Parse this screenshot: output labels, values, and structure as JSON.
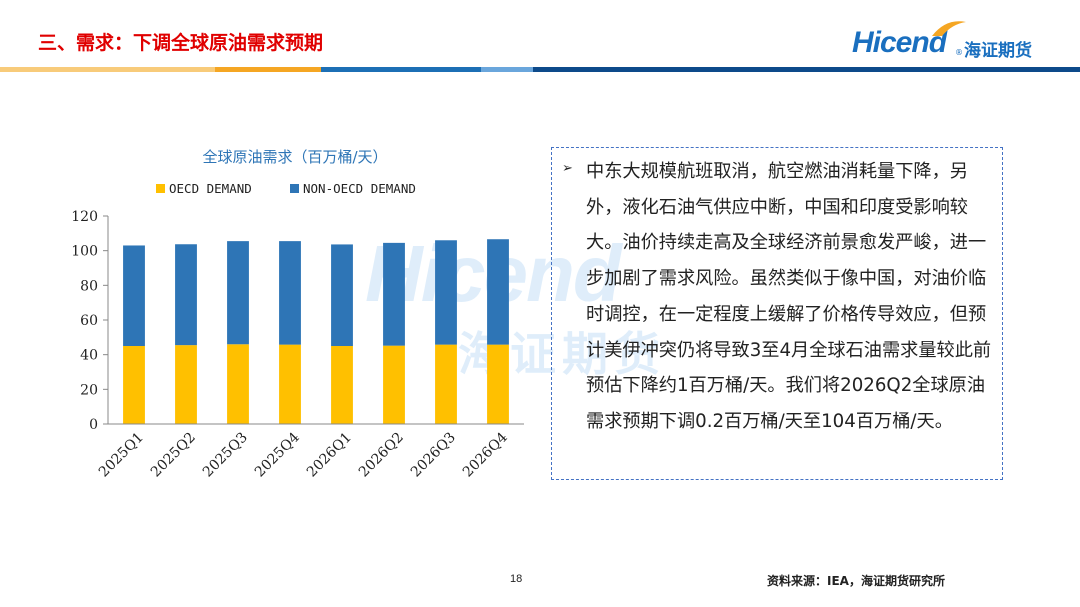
{
  "header": {
    "title": "三、需求：下调全球原油需求预期"
  },
  "logo": {
    "en": "Hicend",
    "cn": "海证期货",
    "registered": "®"
  },
  "watermark": {
    "en": "Hicend",
    "cn": "海证期货"
  },
  "colors": {
    "title_red": "#e00000",
    "brand_blue": "#1a6fbf",
    "oecd": "#ffc000",
    "non_oecd": "#2e75b6",
    "bar_light_orange": "#f8cb7a",
    "bar_orange": "#f5a623",
    "bar_blue": "#1c6fb5",
    "bar_light_blue": "#6aa6dc",
    "bar_dark_blue": "#0d4a8a"
  },
  "chart_data": {
    "type": "bar",
    "stacked": true,
    "title": "全球原油需求（百万桶/天）",
    "categories": [
      "2025Q1",
      "2025Q2",
      "2025Q3",
      "2025Q4",
      "2026Q1",
      "2026Q2",
      "2026Q3",
      "2026Q4"
    ],
    "series": [
      {
        "name": "OECD DEMAND",
        "color": "#ffc000",
        "values": [
          45,
          45.5,
          46,
          45.8,
          45,
          45.2,
          45.8,
          45.8
        ]
      },
      {
        "name": "NON-OECD DEMAND",
        "color": "#2e75b6",
        "values": [
          58,
          58.2,
          59.5,
          59.7,
          58.6,
          59.3,
          60.2,
          60.8
        ]
      }
    ],
    "ylim": [
      0,
      120
    ],
    "yticks": [
      "0",
      "20",
      "40",
      "60",
      "80",
      "100",
      "120"
    ],
    "legend_position": "top",
    "grid": false,
    "xlabel": "",
    "ylabel": ""
  },
  "textbox": {
    "bullet": "➢",
    "text": "中东大规模航班取消，航空燃油消耗量下降，另外，液化石油气供应中断，中国和印度受影响较大。油价持续走高及全球经济前景愈发严峻，进一步加剧了需求风险。虽然类似于像中国，对油价临时调控，在一定程度上缓解了价格传导效应，但预计美伊冲突仍将导致3至4月全球石油需求量较此前预估下降约1百万桶/天。我们将2026Q2全球原油需求预期下调0.2百万桶/天至104百万桶/天。"
  },
  "footer": {
    "page": "18",
    "source": "资料来源：IEA，海证期货研究所"
  }
}
